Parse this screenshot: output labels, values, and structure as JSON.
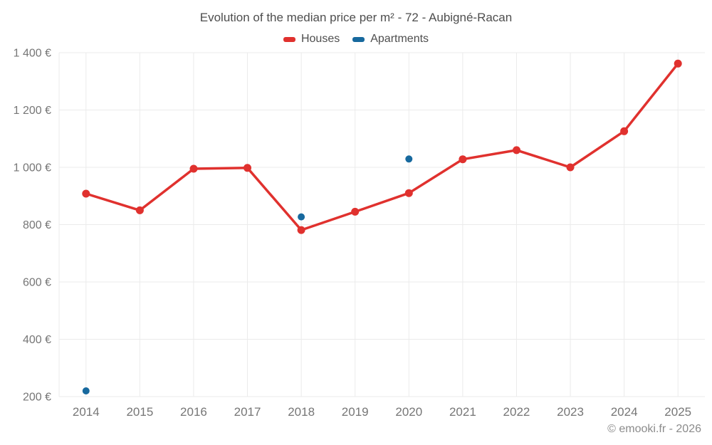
{
  "header": {
    "title": "Evolution of the median price per m² - 72 - Aubigné-Racan"
  },
  "watermark": "© emooki.fr - 2026",
  "colors": {
    "houses": "#e0312e",
    "apartments": "#17699e",
    "grid": "#ebebeb",
    "axis_text": "#767676",
    "title_text": "#4e4e4e",
    "background": "#ffffff"
  },
  "chart_data": {
    "type": "line",
    "title": "Evolution of the median price per m² - 72 - Aubigné-Racan",
    "x": [
      "2014",
      "2015",
      "2016",
      "2017",
      "2018",
      "2019",
      "2020",
      "2021",
      "2022",
      "2023",
      "2024",
      "2025"
    ],
    "series": [
      {
        "name": "Houses",
        "color_key": "houses",
        "style": "line+markers",
        "values": [
          908,
          850,
          995,
          998,
          781,
          845,
          910,
          1028,
          1060,
          1000,
          1126,
          1362
        ]
      },
      {
        "name": "Apartments",
        "color_key": "apartments",
        "style": "markers",
        "values": [
          220,
          null,
          null,
          null,
          827,
          null,
          1029,
          null,
          null,
          null,
          null,
          null
        ]
      }
    ],
    "xlabel": "",
    "ylabel": "",
    "ylim": [
      200,
      1400
    ],
    "ytick_step": 200,
    "ytick_labels": [
      "200 €",
      "400 €",
      "600 €",
      "800 €",
      "1 000 €",
      "1 200 €",
      "1 400 €"
    ],
    "legend_position": "top",
    "grid": true,
    "currency": "€"
  }
}
